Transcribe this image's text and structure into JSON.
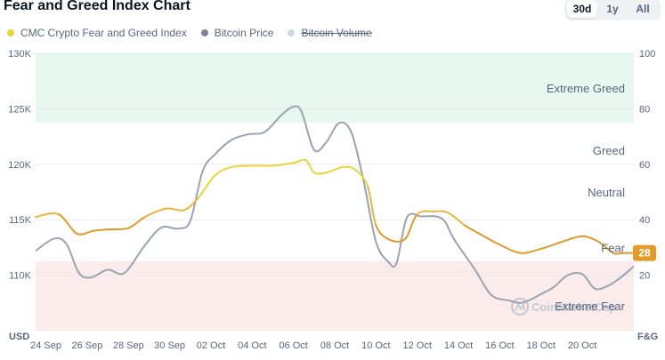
{
  "header": {
    "title": "Fear and Greed Index Chart"
  },
  "range_tabs": [
    {
      "label": "30d",
      "active": true
    },
    {
      "label": "1y",
      "active": false
    },
    {
      "label": "All",
      "active": false
    }
  ],
  "legend": [
    {
      "label": "CMC Crypto Fear and Greed Index",
      "color": "#ead439",
      "enabled": true
    },
    {
      "label": "Bitcoin Price",
      "color": "#7d8596",
      "enabled": true
    },
    {
      "label": "Bitcoin Volume",
      "color": "#cfd6e4",
      "enabled": false
    }
  ],
  "watermark": "CoinMarketCap",
  "chart_data": {
    "type": "line",
    "title": "Fear and Greed Index Chart",
    "left_axis": {
      "unit": "USD",
      "min": 105000,
      "max": 130000,
      "ticks": [
        110000,
        115000,
        120000,
        125000,
        130000
      ],
      "tick_labels": [
        "110K",
        "115K",
        "120K",
        "125K",
        "130K"
      ]
    },
    "right_axis": {
      "unit": "F&G",
      "min": 0,
      "max": 100,
      "ticks": [
        20,
        40,
        60,
        80,
        100
      ],
      "tick_labels": [
        "20",
        "40",
        "60",
        "80",
        "100"
      ]
    },
    "x_range": [
      23.5,
      22.5
    ],
    "x_ticks": [
      24,
      26,
      28,
      30,
      32,
      34,
      36,
      38,
      40,
      42,
      44,
      46,
      48,
      50
    ],
    "x_labels": [
      "24 Sep",
      "26 Sep",
      "28 Sep",
      "30 Sep",
      "02 Oct",
      "04 Oct",
      "06 Oct",
      "08 Oct",
      "10 Oct",
      "12 Oct",
      "14 Oct",
      "16 Oct",
      "18 Oct",
      "20 Oct"
    ],
    "zones": [
      {
        "label": "Extreme Greed",
        "from": 75,
        "to": 100,
        "color": "#e6f8ef"
      },
      {
        "label": "Greed",
        "from": 55,
        "to": 75,
        "color": ""
      },
      {
        "label": "Neutral",
        "from": 45,
        "to": 55,
        "color": ""
      },
      {
        "label": "Fear",
        "from": 25,
        "to": 45,
        "color": ""
      },
      {
        "label": "Extreme Fear",
        "from": 0,
        "to": 25,
        "color": "#fcebeb"
      }
    ],
    "current_value": "28",
    "series": [
      {
        "name": "CMC Crypto Fear and Greed Index",
        "axis": "right",
        "x": [
          23.5,
          24.6,
          25.5,
          26.3,
          27.0,
          28.0,
          28.8,
          29.8,
          30.7,
          31.4,
          32.2,
          33.0,
          34.0,
          35.0,
          36.0,
          36.6,
          37.0,
          37.6,
          38.4,
          39.0,
          39.6,
          40.0,
          40.6,
          41.4,
          42.0,
          42.8,
          43.5,
          44.3,
          45.0,
          46.0,
          47.0,
          48.0,
          49.0,
          50.0,
          50.8,
          51.5,
          52.0,
          52.5
        ],
        "y": [
          41,
          42,
          35,
          36,
          36.5,
          37,
          41,
          44,
          43.5,
          48,
          56,
          59,
          59.5,
          59.5,
          60.5,
          61.5,
          57,
          57,
          59,
          58,
          52,
          38,
          33,
          33,
          42,
          43,
          42.5,
          38,
          35,
          31,
          28,
          29.5,
          32,
          34,
          32,
          28,
          28,
          28
        ]
      },
      {
        "name": "Bitcoin Price",
        "axis": "left",
        "x": [
          23.5,
          24.4,
          25.0,
          25.6,
          26.2,
          27.0,
          27.8,
          28.8,
          29.6,
          30.4,
          31.0,
          31.6,
          32.2,
          33.0,
          33.8,
          34.6,
          35.4,
          36.0,
          36.4,
          37.0,
          37.6,
          38.2,
          38.8,
          39.4,
          40.0,
          40.6,
          41.0,
          41.5,
          42.2,
          43.2,
          43.8,
          44.8,
          45.6,
          46.5,
          47.0,
          47.5,
          48.0,
          48.6,
          49.3,
          50.0,
          50.6,
          51.2,
          51.8,
          52.5
        ],
        "y": [
          112200,
          113300,
          112800,
          110200,
          109800,
          110500,
          110200,
          112700,
          114300,
          114200,
          114900,
          119400,
          120900,
          122200,
          122700,
          122900,
          124400,
          125200,
          124700,
          121300,
          122000,
          123700,
          122900,
          118500,
          113000,
          111200,
          111100,
          115200,
          115300,
          115100,
          113200,
          110500,
          108200,
          107700,
          107500,
          107800,
          108300,
          108900,
          110000,
          110100,
          108800,
          109000,
          109700,
          110800
        ]
      },
      {
        "name": "Bitcoin Volume",
        "axis": "left",
        "x": [],
        "y": []
      }
    ]
  }
}
